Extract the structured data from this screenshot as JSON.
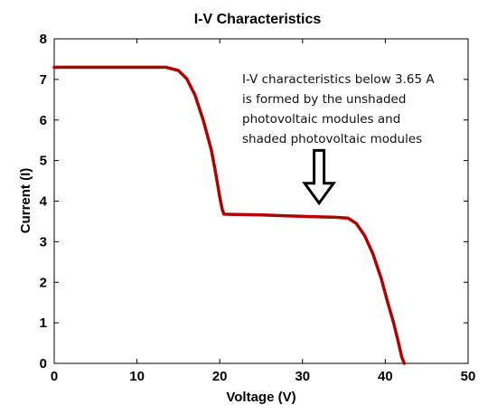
{
  "chart_data": {
    "type": "line",
    "title": "I-V Characteristics",
    "xlabel": "Voltage (V)",
    "ylabel": "Current (I)",
    "xlim": [
      0,
      50
    ],
    "ylim": [
      0,
      8
    ],
    "xticks": [
      0,
      10,
      20,
      30,
      40,
      50
    ],
    "yticks": [
      0,
      1,
      2,
      3,
      4,
      5,
      6,
      7,
      8
    ],
    "grid": false,
    "series": [
      {
        "color": "#c00000",
        "x": [
          0,
          13.5,
          15,
          16,
          17,
          18,
          19,
          19.5,
          20,
          20.3,
          20.5,
          22,
          25,
          28,
          31,
          34,
          35.5,
          36.5,
          37.5,
          38.5,
          39.5,
          40.3,
          41,
          41.6,
          42,
          42.3
        ],
        "y": [
          7.3,
          7.3,
          7.22,
          7.02,
          6.62,
          6.0,
          5.25,
          4.7,
          4.1,
          3.8,
          3.68,
          3.67,
          3.66,
          3.64,
          3.62,
          3.6,
          3.58,
          3.45,
          3.15,
          2.7,
          2.1,
          1.5,
          1.0,
          0.5,
          0.15,
          0
        ]
      }
    ],
    "annotation": {
      "lines": [
        "I-V characteristics below 3.65 A",
        "is formed by the unshaded",
        "photovoltaic modules and",
        "shaded photovoltaic modules"
      ],
      "arrow_icon": "down-arrow-icon",
      "arrow_x": 32,
      "arrow_y_top": 5.25,
      "arrow_y_bottom": 3.95
    }
  }
}
